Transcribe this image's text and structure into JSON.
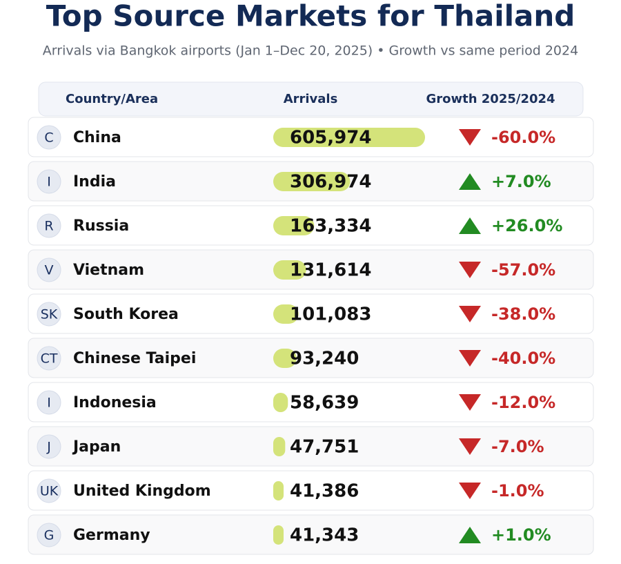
{
  "chart_data": {
    "type": "bar",
    "title": "Top Source Markets for Thailand",
    "subtitle": "Arrivals via Bangkok airports (Jan 1–Dec 20, 2025) • Growth vs same period 2024",
    "columns": [
      "Country/Area",
      "Arrivals",
      "Growth 2025/2024"
    ],
    "categories": [
      "China",
      "India",
      "Russia",
      "Vietnam",
      "South Korea",
      "Chinese Taipei",
      "Indonesia",
      "Japan",
      "United Kingdom",
      "Germany"
    ],
    "initials": [
      "C",
      "I",
      "R",
      "V",
      "SK",
      "CT",
      "I",
      "J",
      "UK",
      "G"
    ],
    "values": [
      605974,
      306974,
      163334,
      131614,
      101083,
      93240,
      58639,
      47751,
      41386,
      41343
    ],
    "value_labels": [
      "605,974",
      "306,974",
      "163,334",
      "131,614",
      "101,083",
      "93,240",
      "58,639",
      "47,751",
      "41,386",
      "41,343"
    ],
    "color": "#d4e37a",
    "growth": [
      -60,
      7,
      26,
      -57,
      -38,
      -40,
      -12,
      -7,
      -1,
      1
    ],
    "growth_labels": [
      "-60.0%",
      "+7.0%",
      "+26.0%",
      "-57.0%",
      "-38.0%",
      "-40.0%",
      "-12.0%",
      "-7.0%",
      "-1.0%",
      "+1.0%"
    ],
    "up_color": "#228b22",
    "down_color": "#c62828"
  }
}
